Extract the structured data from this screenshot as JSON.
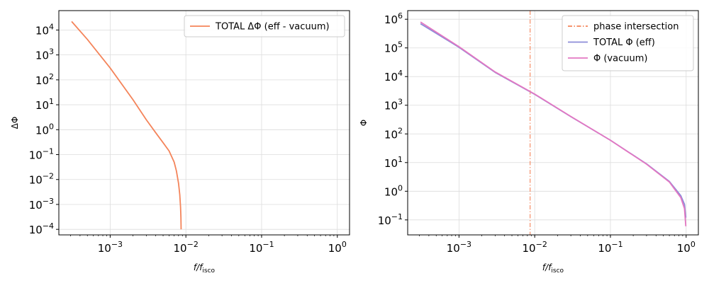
{
  "chart_data": [
    {
      "type": "line",
      "xlabel": "f/f_isco",
      "ylabel": "ΔΦ",
      "xscale": "log",
      "yscale": "log",
      "xlim": [
        0.00021,
        1.45
      ],
      "ylim": [
        6e-05,
        60000
      ],
      "xticks": [
        "10^-3",
        "10^-2",
        "10^-1",
        "10^0"
      ],
      "yticks": [
        "10^-4",
        "10^-3",
        "10^-2",
        "10^-1",
        "10^0",
        "10^1",
        "10^2",
        "10^3",
        "10^4"
      ],
      "grid": true,
      "legend": "top-right",
      "series": [
        {
          "name": "TOTAL ΔΦ (eff - vacuum)",
          "color": "#f4845a",
          "style": "solid",
          "x": [
            0.00031,
            0.0005,
            0.001,
            0.002,
            0.003,
            0.004,
            0.005,
            0.006,
            0.007,
            0.0075,
            0.008,
            0.0083,
            0.0085,
            0.0086,
            0.00865
          ],
          "y": [
            22000,
            4200,
            300,
            16,
            2.5,
            0.75,
            0.3,
            0.14,
            0.05,
            0.022,
            0.007,
            0.0025,
            0.0008,
            0.0003,
            0.0001
          ]
        }
      ]
    },
    {
      "type": "line",
      "xlabel": "f/f_isco",
      "ylabel": "Φ",
      "xscale": "log",
      "yscale": "log",
      "xlim": [
        0.00021,
        1.45
      ],
      "ylim": [
        0.03,
        2000000
      ],
      "xticks": [
        "10^-3",
        "10^-2",
        "10^-1",
        "10^0"
      ],
      "yticks": [
        "10^-1",
        "10^0",
        "10^1",
        "10^2",
        "10^3",
        "10^4",
        "10^5",
        "10^6"
      ],
      "grid": true,
      "legend": "top-right",
      "vlines": [
        {
          "name": "phase intersection",
          "x": 0.0087,
          "color": "#f4845a",
          "style": "dashdot"
        }
      ],
      "series": [
        {
          "name": "TOTAL Φ (eff)",
          "color": "#8c8cd9",
          "style": "solid",
          "x": [
            0.00031,
            0.001,
            0.003,
            0.01,
            0.03,
            0.1,
            0.3,
            0.6,
            0.85,
            0.95,
            0.99
          ],
          "y": [
            700000,
            105000,
            14000,
            2400,
            400,
            60,
            9,
            2.2,
            0.7,
            0.35,
            0.12
          ]
        },
        {
          "name": "Φ (vacuum)",
          "color": "#e377c2",
          "style": "solid",
          "x": [
            0.00031,
            0.001,
            0.003,
            0.01,
            0.03,
            0.1,
            0.3,
            0.6,
            0.85,
            0.95,
            0.99
          ],
          "y": [
            800000,
            110000,
            14500,
            2450,
            405,
            60,
            8.8,
            2.1,
            0.6,
            0.25,
            0.06
          ]
        }
      ]
    }
  ]
}
